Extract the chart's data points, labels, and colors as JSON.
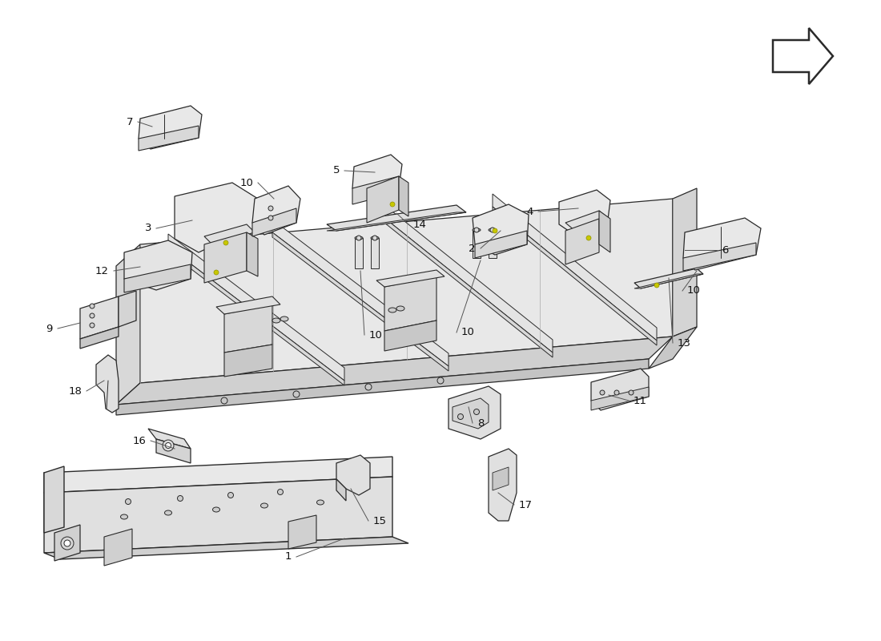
{
  "bg": "#ffffff",
  "lc": "#2a2a2a",
  "lc_thin": "#444444",
  "face_light": "#f0f0f0",
  "face_mid": "#e0e0e0",
  "face_dark": "#cccccc",
  "face_darker": "#b8b8b8",
  "face_side": "#d8d8d8",
  "yellow": "#c8c800",
  "yellow_edge": "#909000"
}
